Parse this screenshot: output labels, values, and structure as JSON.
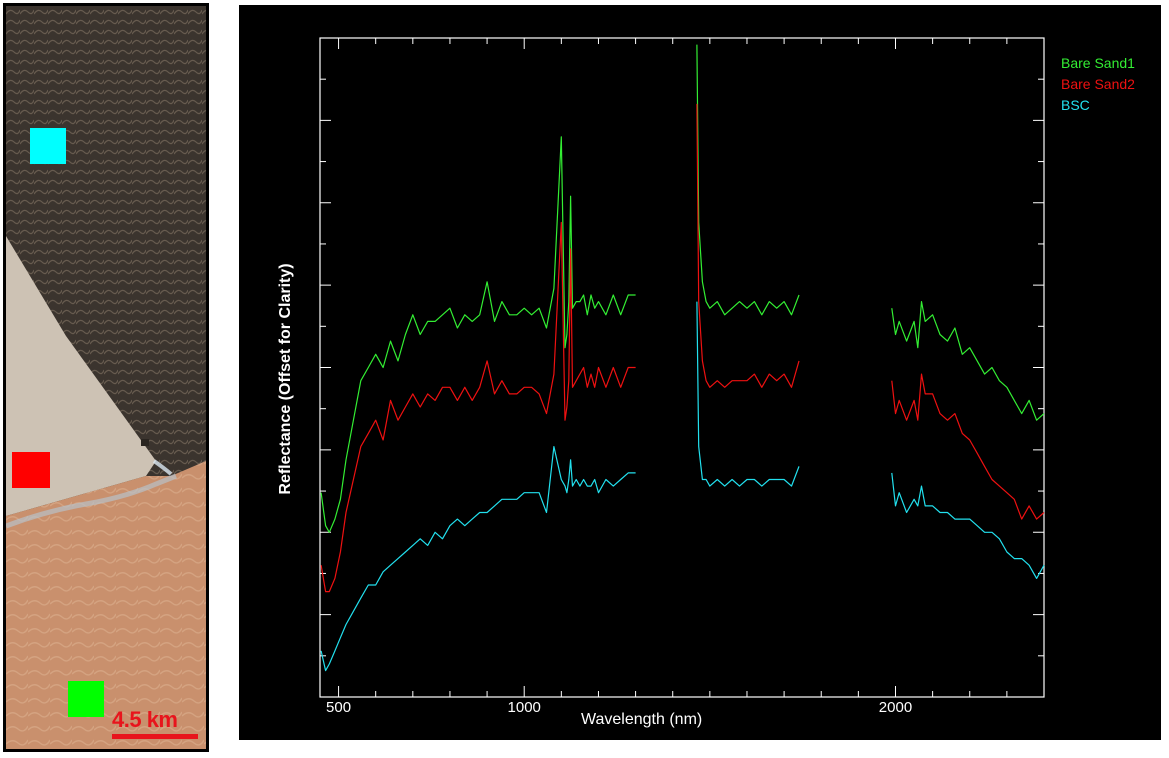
{
  "figure": {
    "scale_bar_label": "4.5 km",
    "map_colors": {
      "dark_crust": "#3b342e",
      "bare_sand": "#c9906d",
      "pale_plain": "#cdc2b4",
      "marker_bsc": "#00ffff",
      "marker_sand2": "#ff0000",
      "marker_sand1": "#00ff00"
    }
  },
  "chart_data": {
    "type": "line",
    "title": "",
    "xlabel": "Wavelength  (nm)",
    "ylabel": "Reflectance (Offset for Clarity)",
    "xlim": [
      450,
      2400
    ],
    "ylim": [
      0,
      1
    ],
    "x_ticks": [
      500,
      1000,
      2000
    ],
    "y_tick_labels_shown": false,
    "legend_position": "top-right",
    "background": "#000000",
    "axis_color": "#ffffff",
    "series": [
      {
        "name": "Bare Sand1",
        "color": "#33ee33",
        "segments": [
          {
            "x": [
              453,
              465,
              475,
              490,
              505,
              520,
              540,
              560,
              580,
              600,
              620,
              640,
              660,
              680,
              700,
              720,
              740,
              760,
              780,
              800,
              820,
              840,
              860,
              880,
              900,
              920,
              940,
              960,
              980,
              1000,
              1020,
              1040,
              1060,
              1080,
              1100,
              1110,
              1115,
              1120,
              1125,
              1130,
              1140,
              1150,
              1160,
              1170,
              1180,
              1190,
              1200,
              1220,
              1240,
              1260,
              1280,
              1300
            ],
            "y": [
              0.31,
              0.26,
              0.25,
              0.27,
              0.3,
              0.36,
              0.42,
              0.48,
              0.5,
              0.52,
              0.5,
              0.54,
              0.51,
              0.55,
              0.58,
              0.55,
              0.57,
              0.57,
              0.58,
              0.59,
              0.56,
              0.58,
              0.57,
              0.58,
              0.63,
              0.57,
              0.6,
              0.58,
              0.58,
              0.59,
              0.58,
              0.59,
              0.56,
              0.62,
              0.85,
              0.53,
              0.55,
              0.6,
              0.76,
              0.59,
              0.6,
              0.6,
              0.61,
              0.58,
              0.61,
              0.59,
              0.6,
              0.58,
              0.61,
              0.58,
              0.61,
              0.61
            ]
          },
          {
            "x": [
              1465,
              1470,
              1480,
              1490,
              1500,
              1520,
              1540,
              1560,
              1580,
              1600,
              1620,
              1640,
              1660,
              1680,
              1700,
              1720,
              1740
            ],
            "y": [
              0.99,
              0.72,
              0.63,
              0.6,
              0.59,
              0.6,
              0.58,
              0.59,
              0.6,
              0.59,
              0.6,
              0.58,
              0.6,
              0.59,
              0.6,
              0.58,
              0.61
            ]
          },
          {
            "x": [
              1990,
              2000,
              2010,
              2030,
              2050,
              2060,
              2070,
              2080,
              2100,
              2120,
              2140,
              2160,
              2180,
              2200,
              2220,
              2240,
              2260,
              2280,
              2300,
              2320,
              2340,
              2360,
              2380,
              2400
            ],
            "y": [
              0.59,
              0.55,
              0.57,
              0.54,
              0.57,
              0.53,
              0.6,
              0.57,
              0.58,
              0.55,
              0.54,
              0.56,
              0.52,
              0.53,
              0.51,
              0.49,
              0.5,
              0.48,
              0.47,
              0.45,
              0.43,
              0.45,
              0.42,
              0.43
            ]
          }
        ]
      },
      {
        "name": "Bare Sand2",
        "color": "#ee1111",
        "segments": [
          {
            "x": [
              453,
              465,
              475,
              490,
              505,
              520,
              540,
              560,
              580,
              600,
              620,
              640,
              660,
              680,
              700,
              720,
              740,
              760,
              780,
              800,
              820,
              840,
              860,
              880,
              900,
              920,
              940,
              960,
              980,
              1000,
              1020,
              1040,
              1060,
              1080,
              1100,
              1110,
              1115,
              1120,
              1125,
              1130,
              1140,
              1150,
              1160,
              1170,
              1180,
              1190,
              1200,
              1220,
              1240,
              1260,
              1280,
              1300
            ],
            "y": [
              0.2,
              0.16,
              0.16,
              0.18,
              0.22,
              0.28,
              0.33,
              0.38,
              0.4,
              0.42,
              0.39,
              0.45,
              0.42,
              0.44,
              0.46,
              0.44,
              0.46,
              0.45,
              0.47,
              0.47,
              0.45,
              0.47,
              0.45,
              0.47,
              0.51,
              0.46,
              0.48,
              0.46,
              0.46,
              0.47,
              0.47,
              0.46,
              0.43,
              0.49,
              0.72,
              0.42,
              0.44,
              0.48,
              0.68,
              0.47,
              0.48,
              0.49,
              0.5,
              0.47,
              0.49,
              0.47,
              0.5,
              0.47,
              0.5,
              0.47,
              0.5,
              0.5
            ]
          },
          {
            "x": [
              1465,
              1470,
              1480,
              1490,
              1500,
              1520,
              1540,
              1560,
              1580,
              1600,
              1620,
              1640,
              1660,
              1680,
              1700,
              1720,
              1740
            ],
            "y": [
              0.9,
              0.6,
              0.51,
              0.48,
              0.47,
              0.48,
              0.47,
              0.48,
              0.48,
              0.48,
              0.49,
              0.47,
              0.49,
              0.48,
              0.49,
              0.47,
              0.51
            ]
          },
          {
            "x": [
              1990,
              2000,
              2010,
              2030,
              2050,
              2060,
              2070,
              2080,
              2100,
              2120,
              2140,
              2160,
              2180,
              2200,
              2220,
              2240,
              2260,
              2280,
              2300,
              2320,
              2340,
              2360,
              2380,
              2400
            ],
            "y": [
              0.48,
              0.43,
              0.45,
              0.42,
              0.45,
              0.42,
              0.49,
              0.46,
              0.46,
              0.43,
              0.42,
              0.43,
              0.4,
              0.39,
              0.37,
              0.35,
              0.33,
              0.32,
              0.31,
              0.3,
              0.27,
              0.29,
              0.27,
              0.28
            ]
          }
        ]
      },
      {
        "name": "BSC",
        "color": "#22e0ee",
        "segments": [
          {
            "x": [
              453,
              465,
              475,
              490,
              505,
              520,
              540,
              560,
              580,
              600,
              620,
              640,
              660,
              680,
              700,
              720,
              740,
              760,
              780,
              800,
              820,
              840,
              860,
              880,
              900,
              920,
              940,
              960,
              980,
              1000,
              1020,
              1040,
              1060,
              1080,
              1100,
              1110,
              1115,
              1120,
              1125,
              1130,
              1140,
              1150,
              1160,
              1170,
              1180,
              1190,
              1200,
              1220,
              1240,
              1260,
              1280,
              1300
            ],
            "y": [
              0.07,
              0.04,
              0.05,
              0.07,
              0.09,
              0.11,
              0.13,
              0.15,
              0.17,
              0.17,
              0.19,
              0.2,
              0.21,
              0.22,
              0.23,
              0.24,
              0.23,
              0.25,
              0.24,
              0.26,
              0.27,
              0.26,
              0.27,
              0.28,
              0.28,
              0.29,
              0.3,
              0.3,
              0.3,
              0.31,
              0.31,
              0.31,
              0.28,
              0.38,
              0.33,
              0.32,
              0.31,
              0.33,
              0.36,
              0.32,
              0.33,
              0.32,
              0.33,
              0.32,
              0.32,
              0.33,
              0.31,
              0.33,
              0.32,
              0.33,
              0.34,
              0.34
            ]
          },
          {
            "x": [
              1465,
              1470,
              1480,
              1490,
              1500,
              1520,
              1540,
              1560,
              1580,
              1600,
              1620,
              1640,
              1660,
              1680,
              1700,
              1720,
              1740
            ],
            "y": [
              0.6,
              0.38,
              0.33,
              0.33,
              0.32,
              0.33,
              0.32,
              0.33,
              0.32,
              0.33,
              0.33,
              0.32,
              0.33,
              0.33,
              0.33,
              0.32,
              0.35
            ]
          },
          {
            "x": [
              1990,
              2000,
              2010,
              2030,
              2050,
              2060,
              2070,
              2080,
              2100,
              2120,
              2140,
              2160,
              2180,
              2200,
              2220,
              2240,
              2260,
              2280,
              2300,
              2320,
              2340,
              2360,
              2380,
              2400
            ],
            "y": [
              0.34,
              0.29,
              0.31,
              0.28,
              0.3,
              0.29,
              0.32,
              0.29,
              0.29,
              0.28,
              0.28,
              0.27,
              0.27,
              0.27,
              0.26,
              0.25,
              0.25,
              0.24,
              0.22,
              0.21,
              0.21,
              0.2,
              0.18,
              0.2
            ]
          }
        ]
      }
    ]
  }
}
